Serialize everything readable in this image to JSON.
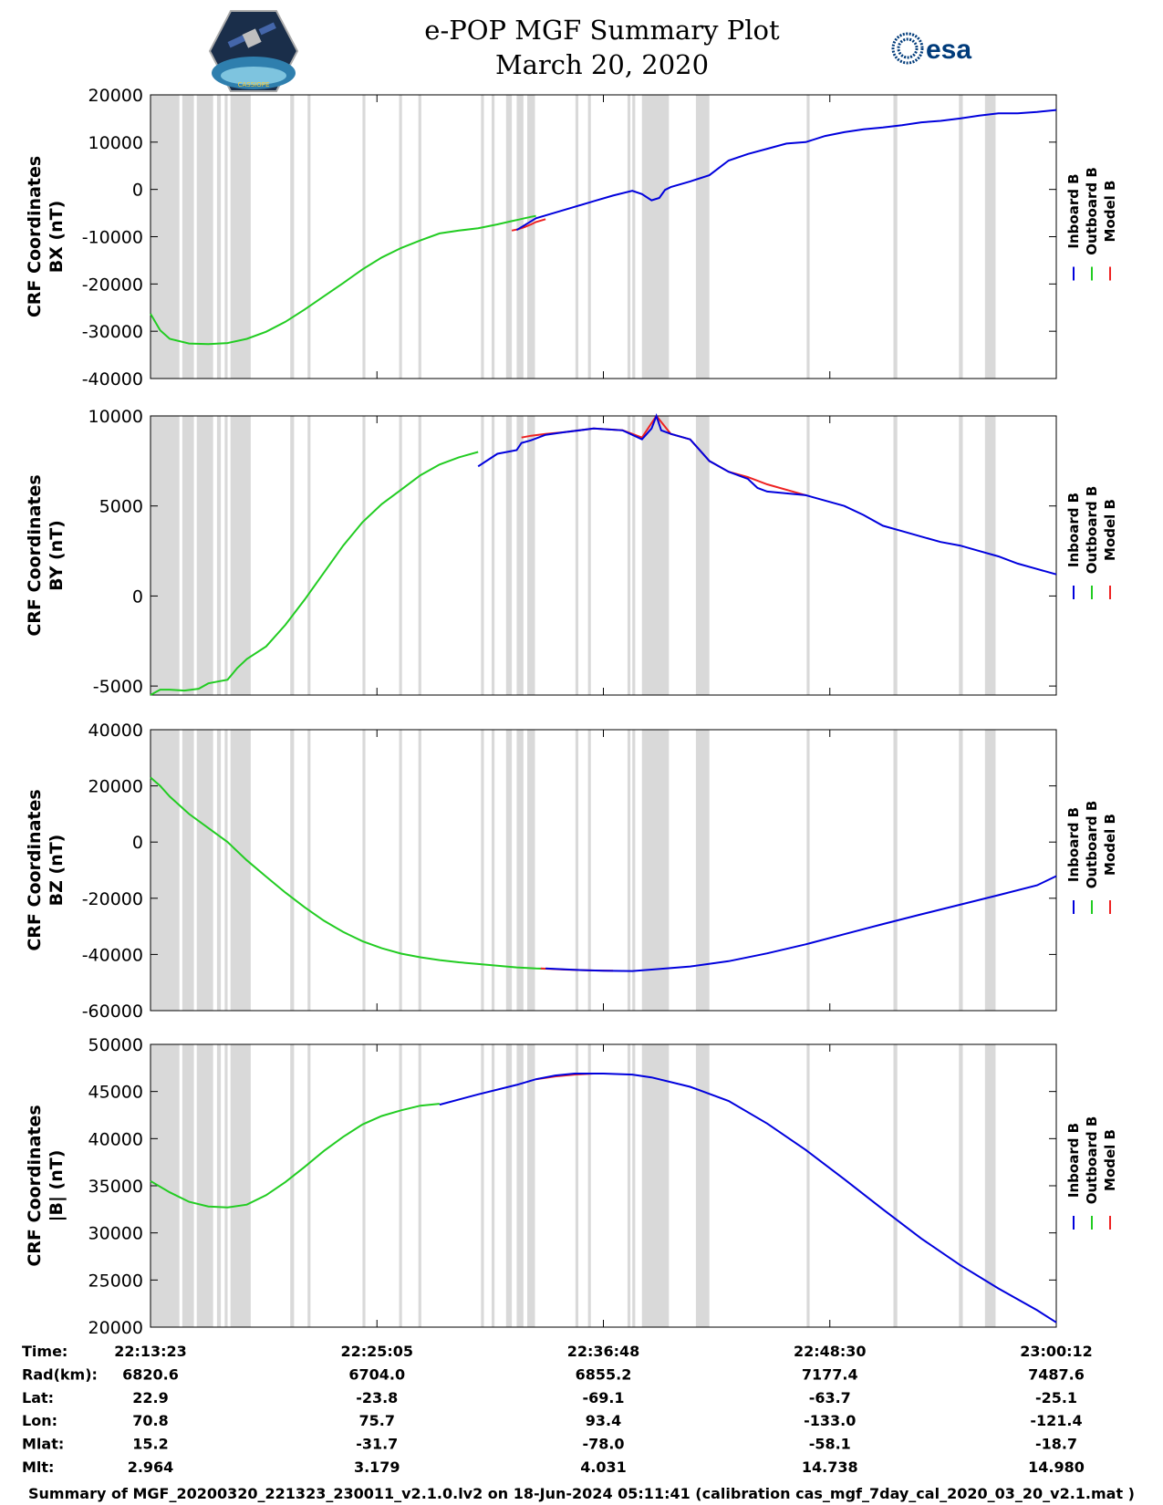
{
  "title": {
    "line1": "e-POP MGF Summary Plot",
    "line2": "March 20, 2020"
  },
  "logos": {
    "left_text": "CASSIOPE",
    "right_text": "esa"
  },
  "colors": {
    "inboard": "#0000dd",
    "outboard": "#22cc22",
    "model": "#ee2222",
    "gap": "#d9d9d9"
  },
  "legend": [
    "Inboard B",
    "Outboard B",
    "Model B"
  ],
  "chart_data": [
    {
      "type": "line",
      "ylabel": [
        "CRF Coordinates",
        "BX (nT)"
      ],
      "ylim": [
        -40000,
        20000
      ],
      "yticks": [
        20000,
        10000,
        0,
        -10000,
        -20000,
        -30000,
        -40000
      ],
      "series": [
        {
          "name": "Outboard B",
          "x": [
            0,
            10,
            20,
            40,
            60,
            80,
            100,
            120,
            140,
            160,
            180,
            200,
            220,
            240,
            260,
            280,
            300,
            320,
            340,
            360,
            375,
            382,
            388,
            395,
            400
          ],
          "y": [
            -26300,
            -29800,
            -31600,
            -32600,
            -32700,
            -32500,
            -31600,
            -30100,
            -28000,
            -25400,
            -22600,
            -19800,
            -16900,
            -14400,
            -12400,
            -10800,
            -9300,
            -8700,
            -8200,
            -7400,
            -6700,
            -6400,
            -6100,
            -5800,
            -5600
          ]
        },
        {
          "name": "Model B",
          "x": [
            375,
            382,
            388,
            395,
            400,
            410
          ],
          "y": [
            -8700,
            -8400,
            -8000,
            -7400,
            -6900,
            -6300
          ]
        },
        {
          "name": "Inboard B",
          "x": [
            380,
            400,
            420,
            440,
            460,
            480,
            500,
            510,
            520,
            528,
            534,
            540,
            560,
            580,
            600,
            620,
            640,
            660,
            680,
            700,
            720,
            740,
            760,
            780,
            800,
            820,
            840,
            860,
            880,
            900,
            920,
            940
          ],
          "y": [
            -8600,
            -6100,
            -4900,
            -3700,
            -2500,
            -1300,
            -300,
            -1000,
            -2300,
            -1800,
            -100,
            500,
            1700,
            3000,
            6100,
            7500,
            8600,
            9700,
            10000,
            11300,
            12100,
            12700,
            13100,
            13600,
            14200,
            14500,
            15000,
            15600,
            16100,
            16100,
            16400,
            16800
          ]
        }
      ]
    },
    {
      "type": "line",
      "ylabel": [
        "CRF Coordinates",
        "BY (nT)"
      ],
      "ylim": [
        -5500,
        10000
      ],
      "yticks": [
        10000,
        5000,
        0,
        -5000
      ],
      "series": [
        {
          "name": "Outboard B",
          "x": [
            0,
            5,
            10,
            20,
            35,
            50,
            60,
            70,
            80,
            90,
            100,
            120,
            140,
            160,
            180,
            200,
            220,
            240,
            260,
            280,
            300,
            320,
            340
          ],
          "y": [
            -5500,
            -5350,
            -5200,
            -5200,
            -5250,
            -5150,
            -4850,
            -4750,
            -4650,
            -4000,
            -3500,
            -2800,
            -1600,
            -200,
            1300,
            2800,
            4100,
            5100,
            5900,
            6700,
            7300,
            7700,
            8000
          ]
        },
        {
          "name": "Model B",
          "x": [
            385,
            395,
            410,
            430,
            460,
            490,
            510,
            525,
            540,
            560,
            580,
            600,
            620,
            640,
            680
          ],
          "y": [
            8800,
            8900,
            9000,
            9100,
            9300,
            9200,
            8800,
            10000,
            9000,
            8700,
            7500,
            6900,
            6600,
            6200,
            5600
          ]
        },
        {
          "name": "Inboard B",
          "x": [
            340,
            360,
            380,
            385,
            395,
            410,
            430,
            460,
            490,
            510,
            520,
            525,
            530,
            540,
            560,
            580,
            600,
            620,
            630,
            640,
            680,
            700,
            720,
            740,
            760,
            780,
            800,
            820,
            840,
            860,
            880,
            900,
            920,
            940
          ],
          "y": [
            7200,
            7900,
            8100,
            8500,
            8650,
            8950,
            9100,
            9300,
            9200,
            8700,
            9300,
            10000,
            9200,
            9000,
            8700,
            7500,
            6900,
            6500,
            6000,
            5800,
            5600,
            5300,
            5000,
            4500,
            3900,
            3600,
            3300,
            3000,
            2800,
            2500,
            2200,
            1800,
            1500,
            1200
          ]
        }
      ]
    },
    {
      "type": "line",
      "ylabel": [
        "CRF Coordinates",
        "BZ (nT)"
      ],
      "ylim": [
        -60000,
        40000
      ],
      "yticks": [
        40000,
        20000,
        0,
        -20000,
        -40000,
        -60000
      ],
      "series": [
        {
          "name": "Outboard B",
          "x": [
            0,
            10,
            20,
            40,
            60,
            80,
            100,
            120,
            140,
            160,
            180,
            200,
            220,
            240,
            260,
            280,
            300,
            320,
            340,
            360,
            380,
            400,
            410
          ],
          "y": [
            23000,
            20000,
            16200,
            10000,
            5000,
            0,
            -6500,
            -12300,
            -18000,
            -23200,
            -28000,
            -32000,
            -35300,
            -37800,
            -39700,
            -41000,
            -42000,
            -42800,
            -43400,
            -44000,
            -44600,
            -45000,
            -45100
          ]
        },
        {
          "name": "Model B",
          "x": [
            405,
            430,
            460,
            480
          ],
          "y": [
            -45000,
            -45400,
            -45700,
            -45800
          ]
        },
        {
          "name": "Inboard B",
          "x": [
            410,
            440,
            470,
            500,
            520,
            560,
            600,
            640,
            680,
            720,
            760,
            800,
            840,
            880,
            920,
            940
          ],
          "y": [
            -45000,
            -45500,
            -45800,
            -45900,
            -45400,
            -44300,
            -42400,
            -39600,
            -36400,
            -32800,
            -29200,
            -25700,
            -22300,
            -18900,
            -15400,
            -12100
          ]
        }
      ]
    },
    {
      "type": "line",
      "ylabel": [
        "CRF Coordinates",
        "|B| (nT)"
      ],
      "ylim": [
        20000,
        50000
      ],
      "yticks": [
        50000,
        45000,
        40000,
        35000,
        30000,
        25000,
        20000
      ],
      "series": [
        {
          "name": "Outboard B",
          "x": [
            0,
            20,
            40,
            60,
            80,
            100,
            120,
            140,
            160,
            180,
            200,
            220,
            240,
            260,
            280,
            300
          ],
          "y": [
            35500,
            34300,
            33300,
            32800,
            32700,
            33000,
            34000,
            35400,
            37000,
            38700,
            40200,
            41500,
            42400,
            43000,
            43500,
            43700
          ]
        },
        {
          "name": "Model B",
          "x": [
            400,
            420,
            440,
            460,
            470
          ],
          "y": [
            46300,
            46600,
            46800,
            46900,
            46900
          ]
        },
        {
          "name": "Inboard B",
          "x": [
            300,
            340,
            380,
            400,
            420,
            440,
            470,
            500,
            520,
            560,
            600,
            640,
            680,
            720,
            760,
            800,
            840,
            880,
            920,
            940
          ],
          "y": [
            43600,
            44700,
            45700,
            46300,
            46700,
            46900,
            46900,
            46800,
            46500,
            45500,
            44000,
            41600,
            38800,
            35700,
            32500,
            29400,
            26600,
            24100,
            21800,
            20500
          ]
        }
      ]
    }
  ],
  "table": {
    "row_labels": [
      "Time:",
      "Rad(km):",
      "Lat:",
      "Lon:",
      "Mlat:",
      "Mlt:"
    ],
    "columns": [
      [
        "22:13:23",
        "6820.6",
        "22.9",
        "70.8",
        "15.2",
        "2.964"
      ],
      [
        "22:25:05",
        "6704.0",
        "-23.8",
        "75.7",
        "-31.7",
        "3.179"
      ],
      [
        "22:36:48",
        "6855.2",
        "-69.1",
        "93.4",
        "-78.0",
        "4.031"
      ],
      [
        "22:48:30",
        "7177.4",
        "-63.7",
        "-133.0",
        "-58.1",
        "14.738"
      ],
      [
        "23:00:12",
        "7487.6",
        "-25.1",
        "-121.4",
        "-18.7",
        "14.980"
      ]
    ]
  },
  "footer": "Summary of MGF_20200320_221323_230011_v2.1.0.lv2 on 18-Jun-2024 05:11:41 (calibration cas_mgf_7day_cal_2020_03_20_v2.1.mat )",
  "gaps": [
    [
      0,
      30
    ],
    [
      33,
      45
    ],
    [
      48,
      65
    ],
    [
      69,
      73
    ],
    [
      77,
      80
    ],
    [
      83,
      104
    ],
    [
      145,
      149
    ],
    [
      163,
      166
    ],
    [
      220,
      223
    ],
    [
      258,
      261
    ],
    [
      278,
      281
    ],
    [
      343,
      346
    ],
    [
      354,
      357
    ],
    [
      369,
      375
    ],
    [
      380,
      387
    ],
    [
      391,
      399
    ],
    [
      441,
      444
    ],
    [
      454,
      457
    ],
    [
      495,
      498
    ],
    [
      500,
      503
    ],
    [
      510,
      538
    ],
    [
      566,
      580
    ],
    [
      681,
      684
    ],
    [
      771,
      775
    ],
    [
      839,
      843
    ],
    [
      866,
      877
    ]
  ]
}
